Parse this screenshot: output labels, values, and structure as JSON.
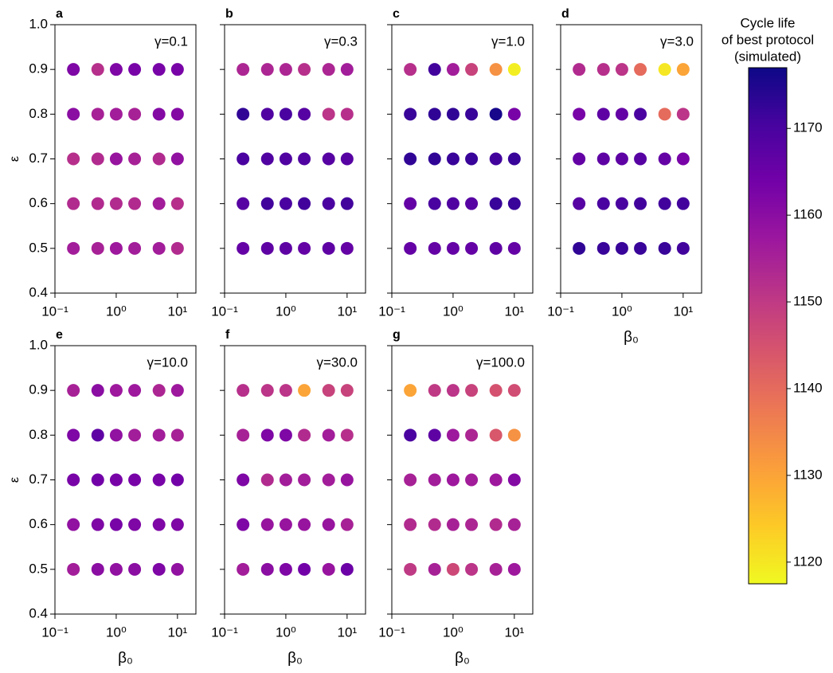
{
  "chart_data": [
    {
      "type": "scatter",
      "title": "a",
      "annotation": "γ=0.1",
      "ylabel": "ε",
      "x": [
        0.2,
        0.5,
        1,
        2,
        5,
        10,
        0.2,
        0.5,
        1,
        2,
        5,
        10,
        0.2,
        0.5,
        1,
        2,
        5,
        10,
        0.2,
        0.5,
        1,
        2,
        5,
        10,
        0.2,
        0.5,
        1,
        2,
        5,
        10
      ],
      "y": [
        0.9,
        0.9,
        0.9,
        0.9,
        0.9,
        0.9,
        0.8,
        0.8,
        0.8,
        0.8,
        0.8,
        0.8,
        0.7,
        0.7,
        0.7,
        0.7,
        0.7,
        0.7,
        0.6,
        0.6,
        0.6,
        0.6,
        0.6,
        0.6,
        0.5,
        0.5,
        0.5,
        0.5,
        0.5,
        0.5
      ],
      "values": [
        1162,
        1152,
        1162,
        1163,
        1163,
        1163,
        1160,
        1155,
        1156,
        1155,
        1161,
        1161,
        1152,
        1153,
        1158,
        1155,
        1153,
        1159,
        1153,
        1153,
        1153,
        1153,
        1156,
        1152,
        1156,
        1155,
        1157,
        1156,
        1156,
        1153
      ],
      "xscale": "log",
      "xlim": [
        0.1,
        20
      ],
      "ylim": [
        0.4,
        1.0
      ],
      "xticks": [
        {
          "value": 0.1,
          "label": "10⁻¹"
        },
        {
          "value": 1,
          "label": "10⁰"
        },
        {
          "value": 10,
          "label": "10¹"
        }
      ],
      "yticks": [
        0.4,
        0.5,
        0.6,
        0.7,
        0.8,
        0.9,
        {
          "value": 1,
          "label": "1.0"
        }
      ]
    },
    {
      "type": "scatter",
      "title": "b",
      "annotation": "γ=0.3",
      "x": [
        0.2,
        0.5,
        1,
        2,
        5,
        10,
        0.2,
        0.5,
        1,
        2,
        5,
        10,
        0.2,
        0.5,
        1,
        2,
        5,
        10,
        0.2,
        0.5,
        1,
        2,
        5,
        10,
        0.2,
        0.5,
        1,
        2,
        5,
        10
      ],
      "y": [
        0.9,
        0.9,
        0.9,
        0.9,
        0.9,
        0.9,
        0.8,
        0.8,
        0.8,
        0.8,
        0.8,
        0.8,
        0.7,
        0.7,
        0.7,
        0.7,
        0.7,
        0.7,
        0.6,
        0.6,
        0.6,
        0.6,
        0.6,
        0.6,
        0.5,
        0.5,
        0.5,
        0.5,
        0.5,
        0.5
      ],
      "values": [
        1154,
        1154,
        1154,
        1152,
        1154,
        1156,
        1173,
        1169,
        1170,
        1168,
        1151,
        1152,
        1170,
        1169,
        1169,
        1169,
        1168,
        1168,
        1168,
        1171,
        1170,
        1171,
        1170,
        1171,
        1166,
        1167,
        1167,
        1166,
        1167,
        1166
      ],
      "xscale": "log",
      "xlim": [
        0.1,
        20
      ],
      "ylim": [
        0.4,
        1.0
      ],
      "xticks": [
        {
          "value": 0.1,
          "label": "10⁻¹"
        },
        {
          "value": 1,
          "label": "10⁰"
        },
        {
          "value": 10,
          "label": "10¹"
        }
      ],
      "yticks": [
        0.4,
        0.5,
        0.6,
        0.7,
        0.8,
        0.9,
        1
      ]
    },
    {
      "type": "scatter",
      "title": "c",
      "annotation": "γ=1.0",
      "x": [
        0.2,
        0.5,
        1,
        2,
        5,
        10,
        0.2,
        0.5,
        1,
        2,
        5,
        10,
        0.2,
        0.5,
        1,
        2,
        5,
        10,
        0.2,
        0.5,
        1,
        2,
        5,
        10,
        0.2,
        0.5,
        1,
        2,
        5,
        10
      ],
      "y": [
        0.9,
        0.9,
        0.9,
        0.9,
        0.9,
        0.9,
        0.8,
        0.8,
        0.8,
        0.8,
        0.8,
        0.8,
        0.7,
        0.7,
        0.7,
        0.7,
        0.7,
        0.7,
        0.6,
        0.6,
        0.6,
        0.6,
        0.6,
        0.6,
        0.5,
        0.5,
        0.5,
        0.5,
        0.5,
        0.5
      ],
      "values": [
        1152,
        1171,
        1156,
        1148,
        1133,
        1119,
        1172,
        1173,
        1173,
        1172,
        1176,
        1163,
        1173,
        1173,
        1172,
        1172,
        1171,
        1172,
        1166,
        1170,
        1169,
        1168,
        1172,
        1172,
        1166,
        1166,
        1166,
        1166,
        1167,
        1166
      ],
      "xscale": "log",
      "xlim": [
        0.1,
        20
      ],
      "ylim": [
        0.4,
        1.0
      ],
      "xticks": [
        {
          "value": 0.1,
          "label": "10⁻¹"
        },
        {
          "value": 1,
          "label": "10⁰"
        },
        {
          "value": 10,
          "label": "10¹"
        }
      ],
      "yticks": [
        0.4,
        0.5,
        0.6,
        0.7,
        0.8,
        0.9,
        1
      ]
    },
    {
      "type": "scatter",
      "title": "d",
      "annotation": "γ=3.0",
      "xlabel": "β₀",
      "x": [
        0.2,
        0.5,
        1,
        2,
        5,
        10,
        0.2,
        0.5,
        1,
        2,
        5,
        10,
        0.2,
        0.5,
        1,
        2,
        5,
        10,
        0.2,
        0.5,
        1,
        2,
        5,
        10,
        0.2,
        0.5,
        1,
        2,
        5,
        10
      ],
      "y": [
        0.9,
        0.9,
        0.9,
        0.9,
        0.9,
        0.9,
        0.8,
        0.8,
        0.8,
        0.8,
        0.8,
        0.8,
        0.7,
        0.7,
        0.7,
        0.7,
        0.7,
        0.7,
        0.6,
        0.6,
        0.6,
        0.6,
        0.6,
        0.6,
        0.5,
        0.5,
        0.5,
        0.5,
        0.5,
        0.5
      ],
      "values": [
        1153,
        1152,
        1151,
        1140,
        1120,
        1130,
        1163,
        1167,
        1166,
        1170,
        1140,
        1151,
        1166,
        1167,
        1167,
        1168,
        1166,
        1163,
        1168,
        1170,
        1170,
        1171,
        1171,
        1171,
        1173,
        1172,
        1172,
        1172,
        1172,
        1171
      ],
      "xscale": "log",
      "xlim": [
        0.1,
        20
      ],
      "ylim": [
        0.4,
        1.0
      ],
      "xticks": [
        {
          "value": 0.1,
          "label": "10⁻¹"
        },
        {
          "value": 1,
          "label": "10⁰"
        },
        {
          "value": 10,
          "label": "10¹"
        }
      ],
      "yticks": [
        0.4,
        0.5,
        0.6,
        0.7,
        0.8,
        0.9,
        1
      ]
    },
    {
      "type": "scatter",
      "title": "e",
      "annotation": "γ=10.0",
      "ylabel": "ε",
      "xlabel": "β₀",
      "x": [
        0.2,
        0.5,
        1,
        2,
        5,
        10,
        0.2,
        0.5,
        1,
        2,
        5,
        10,
        0.2,
        0.5,
        1,
        2,
        5,
        10,
        0.2,
        0.5,
        1,
        2,
        5,
        10,
        0.2,
        0.5,
        1,
        2,
        5,
        10
      ],
      "y": [
        0.9,
        0.9,
        0.9,
        0.9,
        0.9,
        0.9,
        0.8,
        0.8,
        0.8,
        0.8,
        0.8,
        0.8,
        0.7,
        0.7,
        0.7,
        0.7,
        0.7,
        0.7,
        0.6,
        0.6,
        0.6,
        0.6,
        0.6,
        0.6,
        0.5,
        0.5,
        0.5,
        0.5,
        0.5,
        0.5
      ],
      "values": [
        1155,
        1160,
        1157,
        1157,
        1154,
        1157,
        1162,
        1167,
        1159,
        1156,
        1156,
        1155,
        1163,
        1164,
        1163,
        1163,
        1163,
        1164,
        1159,
        1162,
        1163,
        1162,
        1162,
        1162,
        1156,
        1160,
        1159,
        1160,
        1162,
        1159
      ],
      "xscale": "log",
      "xlim": [
        0.1,
        20
      ],
      "ylim": [
        0.4,
        1.0
      ],
      "xticks": [
        {
          "value": 0.1,
          "label": "10⁻¹"
        },
        {
          "value": 1,
          "label": "10⁰"
        },
        {
          "value": 10,
          "label": "10¹"
        }
      ],
      "yticks": [
        0.4,
        0.5,
        0.6,
        0.7,
        0.8,
        0.9,
        {
          "value": 1,
          "label": "1.0"
        }
      ]
    },
    {
      "type": "scatter",
      "title": "f",
      "annotation": "γ=30.0",
      "xlabel": "β₀",
      "x": [
        0.2,
        0.5,
        1,
        2,
        5,
        10,
        0.2,
        0.5,
        1,
        2,
        5,
        10,
        0.2,
        0.5,
        1,
        2,
        5,
        10,
        0.2,
        0.5,
        1,
        2,
        5,
        10,
        0.2,
        0.5,
        1,
        2,
        5,
        10
      ],
      "y": [
        0.9,
        0.9,
        0.9,
        0.9,
        0.9,
        0.9,
        0.8,
        0.8,
        0.8,
        0.8,
        0.8,
        0.8,
        0.7,
        0.7,
        0.7,
        0.7,
        0.7,
        0.7,
        0.6,
        0.6,
        0.6,
        0.6,
        0.6,
        0.6,
        0.5,
        0.5,
        0.5,
        0.5,
        0.5,
        0.5
      ],
      "values": [
        1152,
        1151,
        1151,
        1130,
        1148,
        1148,
        1155,
        1162,
        1162,
        1153,
        1156,
        1152,
        1162,
        1153,
        1156,
        1156,
        1156,
        1158,
        1162,
        1158,
        1158,
        1158,
        1158,
        1155,
        1156,
        1160,
        1162,
        1164,
        1158,
        1165
      ],
      "xscale": "log",
      "xlim": [
        0.1,
        20
      ],
      "ylim": [
        0.4,
        1.0
      ],
      "xticks": [
        {
          "value": 0.1,
          "label": "10⁻¹"
        },
        {
          "value": 1,
          "label": "10⁰"
        },
        {
          "value": 10,
          "label": "10¹"
        }
      ],
      "yticks": [
        0.4,
        0.5,
        0.6,
        0.7,
        0.8,
        0.9,
        1
      ]
    },
    {
      "type": "scatter",
      "title": "g",
      "annotation": "γ=100.0",
      "xlabel": "β₀",
      "x": [
        0.2,
        0.5,
        1,
        2,
        5,
        10,
        0.2,
        0.5,
        1,
        2,
        5,
        10,
        0.2,
        0.5,
        1,
        2,
        5,
        10,
        0.2,
        0.5,
        1,
        2,
        5,
        10,
        0.2,
        0.5,
        1,
        2,
        5,
        10
      ],
      "y": [
        0.9,
        0.9,
        0.9,
        0.9,
        0.9,
        0.9,
        0.8,
        0.8,
        0.8,
        0.8,
        0.8,
        0.8,
        0.7,
        0.7,
        0.7,
        0.7,
        0.7,
        0.7,
        0.6,
        0.6,
        0.6,
        0.6,
        0.6,
        0.6,
        0.5,
        0.5,
        0.5,
        0.5,
        0.5,
        0.5
      ],
      "values": [
        1130,
        1150,
        1151,
        1148,
        1145,
        1146,
        1170,
        1167,
        1157,
        1154,
        1144,
        1133,
        1155,
        1156,
        1157,
        1156,
        1157,
        1161,
        1153,
        1153,
        1155,
        1154,
        1153,
        1155,
        1150,
        1155,
        1147,
        1151,
        1155,
        1157
      ],
      "xscale": "log",
      "xlim": [
        0.1,
        20
      ],
      "ylim": [
        0.4,
        1.0
      ],
      "xticks": [
        {
          "value": 0.1,
          "label": "10⁻¹"
        },
        {
          "value": 1,
          "label": "10⁰"
        },
        {
          "value": 10,
          "label": "10¹"
        }
      ],
      "yticks": [
        0.4,
        0.5,
        0.6,
        0.7,
        0.8,
        0.9,
        1
      ]
    },
    {
      "type": "colorbar",
      "title": [
        "Cycle life",
        "of best protocol",
        "(simulated)"
      ],
      "lim": [
        1117.5,
        1177
      ],
      "ticks": [
        1120,
        1130,
        1140,
        1150,
        1160,
        1170
      ],
      "colormap": [
        "#0d0887",
        "#47039f",
        "#7301a8",
        "#9c179e",
        "#bd3786",
        "#d8576b",
        "#ed7953",
        "#fb9f3a",
        "#fdca26",
        "#f0f921"
      ]
    }
  ]
}
